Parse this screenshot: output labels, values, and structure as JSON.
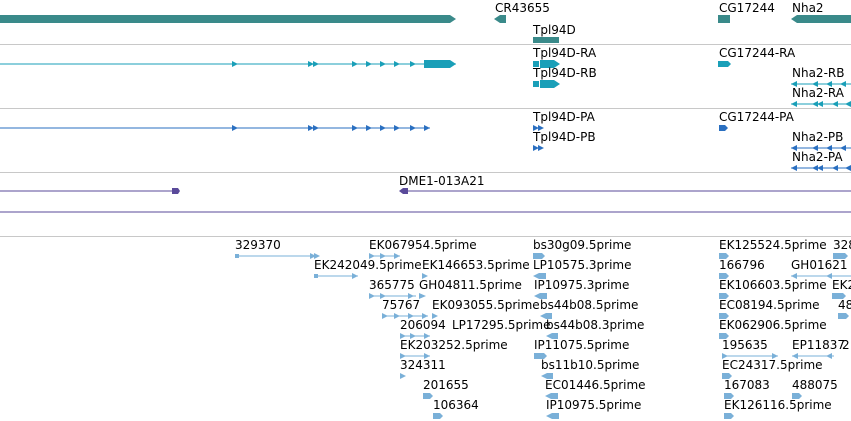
{
  "colors": {
    "gene": "#3a8a8a",
    "transcript_rna": "#1a9fb8",
    "transcript_protein": "#2a6fc0",
    "clone": "#5a4a9a",
    "est": "#7ab0d8",
    "separator": "#c8c8c8"
  },
  "genes": {
    "cr43655": "CR43655",
    "tpl94d": "Tpl94D",
    "cg17244": "CG17244",
    "nha2": "Nha2"
  },
  "rna": {
    "tpl94d_ra": "Tpl94D-RA",
    "tpl94d_rb": "Tpl94D-RB",
    "cg17244_ra": "CG17244-RA",
    "nha2_rb": "Nha2-RB",
    "nha2_ra": "Nha2-RA"
  },
  "protein": {
    "tpl94d_pa": "Tpl94D-PA",
    "tpl94d_pb": "Tpl94D-PB",
    "cg17244_pa": "CG17244-PA",
    "nha2_pb": "Nha2-PB",
    "nha2_pa": "Nha2-PA"
  },
  "clones": {
    "dme1": "DME1-013A21"
  },
  "ests": {
    "e329370": "329370",
    "ek067954": "EK067954.5prime",
    "bs30g09": "bs30g09.5prime",
    "ek125524": "EK125524.5prime",
    "e328": "328",
    "ek242049": "EK242049.5prime",
    "ek146653": "EK146653.5prime",
    "lp10575": "LP10575.3prime",
    "e166796": "166796",
    "gh0162": "GH01621",
    "e365775": "365775",
    "gh04811": "GH04811.5prime",
    "ip10975_3": "IP10975.3prime",
    "ek106603": "EK106603.5prime",
    "ek2": "EK2",
    "e75767": "75767",
    "ek093055": "EK093055.5prime",
    "bs44b08_5": "bs44b08.5prime",
    "ec08194": "EC08194.5prime",
    "e48": "48",
    "e206094": "206094",
    "lp17295": "LP17295.5prime",
    "bs44b08_3": "bs44b08.3prime",
    "ek062906": "EK062906.5prime",
    "ek203252": "EK203252.5prime",
    "ip11075": "IP11075.5prime",
    "e195635": "195635",
    "ep11837": "EP11837",
    "e2a": "2",
    "e324311": "324311",
    "bs11b10": "bs11b10.5prime",
    "ec24317": "EC24317.5prime",
    "e201655": "201655",
    "ec01446": "EC01446.5prime",
    "e167083": "167083",
    "e488075": "488075",
    "e106364": "106364",
    "ip10975_5": "IP10975.5prime",
    "ek126116": "EK126116.5prime"
  }
}
